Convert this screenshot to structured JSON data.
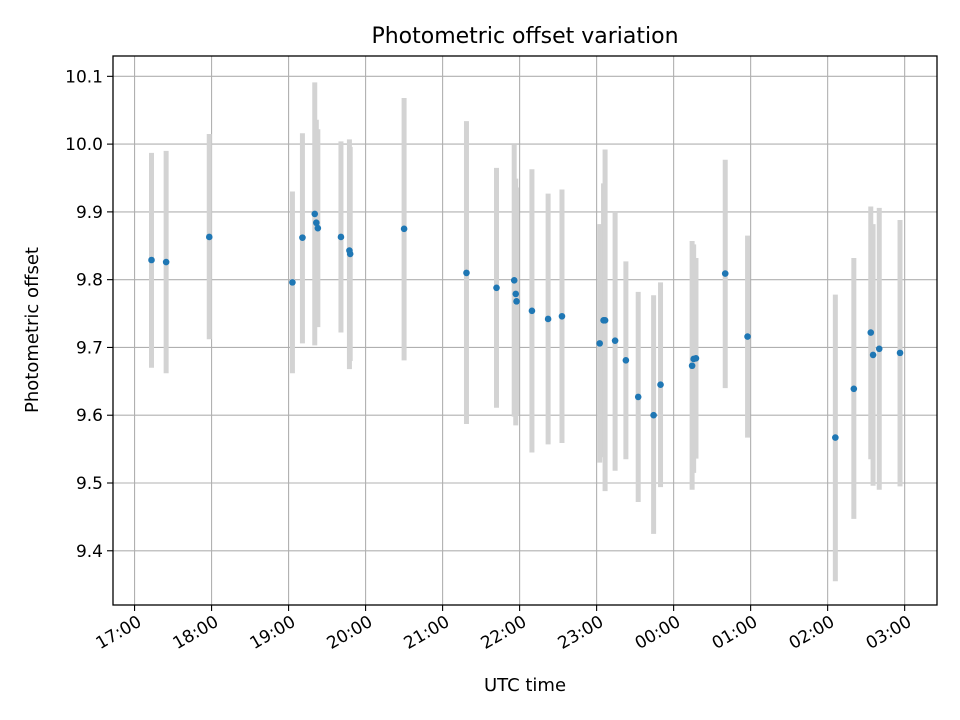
{
  "chart_data": {
    "type": "scatter",
    "title": "Photometric offset variation",
    "xlabel": "UTC time",
    "ylabel": "Photometric offset",
    "x_unit": "hours after 17:00 UTC",
    "xlim": [
      -0.28,
      10.42
    ],
    "ylim": [
      9.32,
      10.13
    ],
    "grid": true,
    "legend": "none",
    "x_ticks": [
      {
        "value": 0,
        "label": "17:00"
      },
      {
        "value": 1,
        "label": "18:00"
      },
      {
        "value": 2,
        "label": "19:00"
      },
      {
        "value": 3,
        "label": "20:00"
      },
      {
        "value": 4,
        "label": "21:00"
      },
      {
        "value": 5,
        "label": "22:00"
      },
      {
        "value": 6,
        "label": "23:00"
      },
      {
        "value": 7,
        "label": "00:00"
      },
      {
        "value": 8,
        "label": "01:00"
      },
      {
        "value": 9,
        "label": "02:00"
      },
      {
        "value": 10,
        "label": "03:00"
      }
    ],
    "y_ticks": [
      9.4,
      9.5,
      9.6,
      9.7,
      9.8,
      9.9,
      10.0,
      10.1
    ],
    "y_tick_labels": [
      "9.4",
      "9.5",
      "9.6",
      "9.7",
      "9.8",
      "9.9",
      "10.0",
      "10.1"
    ],
    "colors": {
      "points": "#1f77b4",
      "errorbars": "#d3d3d3",
      "grid": "#b0b0b0"
    },
    "points": [
      {
        "x": 0.22,
        "y": 9.829,
        "lo": 9.67,
        "hi": 9.987
      },
      {
        "x": 0.41,
        "y": 9.826,
        "lo": 9.662,
        "hi": 9.99
      },
      {
        "x": 0.97,
        "y": 9.863,
        "lo": 9.712,
        "hi": 10.015
      },
      {
        "x": 2.05,
        "y": 9.796,
        "lo": 9.662,
        "hi": 9.93
      },
      {
        "x": 2.18,
        "y": 9.862,
        "lo": 9.706,
        "hi": 10.016
      },
      {
        "x": 2.34,
        "y": 9.897,
        "lo": 9.703,
        "hi": 10.091
      },
      {
        "x": 2.36,
        "y": 9.884,
        "lo": 9.732,
        "hi": 10.036
      },
      {
        "x": 2.38,
        "y": 9.876,
        "lo": 9.73,
        "hi": 10.022
      },
      {
        "x": 2.68,
        "y": 9.863,
        "lo": 9.722,
        "hi": 10.004
      },
      {
        "x": 2.79,
        "y": 9.843,
        "lo": 9.668,
        "hi": 10.007
      },
      {
        "x": 2.8,
        "y": 9.838,
        "lo": 9.68,
        "hi": 9.996
      },
      {
        "x": 3.5,
        "y": 9.875,
        "lo": 9.681,
        "hi": 10.068
      },
      {
        "x": 4.31,
        "y": 9.81,
        "lo": 9.587,
        "hi": 10.034
      },
      {
        "x": 4.7,
        "y": 9.788,
        "lo": 9.611,
        "hi": 9.965
      },
      {
        "x": 4.93,
        "y": 9.799,
        "lo": 9.598,
        "hi": 10.0
      },
      {
        "x": 4.95,
        "y": 9.779,
        "lo": 9.585,
        "hi": 9.949
      },
      {
        "x": 4.96,
        "y": 9.768,
        "lo": 9.6,
        "hi": 9.936
      },
      {
        "x": 5.16,
        "y": 9.754,
        "lo": 9.545,
        "hi": 9.963
      },
      {
        "x": 5.37,
        "y": 9.742,
        "lo": 9.557,
        "hi": 9.927
      },
      {
        "x": 5.55,
        "y": 9.746,
        "lo": 9.559,
        "hi": 9.933
      },
      {
        "x": 6.04,
        "y": 9.706,
        "lo": 9.53,
        "hi": 9.882
      },
      {
        "x": 6.09,
        "y": 9.74,
        "lo": 9.538,
        "hi": 9.942
      },
      {
        "x": 6.11,
        "y": 9.74,
        "lo": 9.488,
        "hi": 9.992
      },
      {
        "x": 6.24,
        "y": 9.71,
        "lo": 9.518,
        "hi": 9.9
      },
      {
        "x": 6.38,
        "y": 9.681,
        "lo": 9.535,
        "hi": 9.827
      },
      {
        "x": 6.54,
        "y": 9.627,
        "lo": 9.472,
        "hi": 9.782
      },
      {
        "x": 6.74,
        "y": 9.6,
        "lo": 9.425,
        "hi": 9.777
      },
      {
        "x": 6.83,
        "y": 9.645,
        "lo": 9.494,
        "hi": 9.796
      },
      {
        "x": 7.24,
        "y": 9.673,
        "lo": 9.49,
        "hi": 9.857
      },
      {
        "x": 7.26,
        "y": 9.683,
        "lo": 9.515,
        "hi": 9.852
      },
      {
        "x": 7.29,
        "y": 9.684,
        "lo": 9.536,
        "hi": 9.832
      },
      {
        "x": 7.67,
        "y": 9.809,
        "lo": 9.64,
        "hi": 9.977
      },
      {
        "x": 7.96,
        "y": 9.716,
        "lo": 9.567,
        "hi": 9.865
      },
      {
        "x": 9.1,
        "y": 9.567,
        "lo": 9.355,
        "hi": 9.778
      },
      {
        "x": 9.34,
        "y": 9.639,
        "lo": 9.447,
        "hi": 9.832
      },
      {
        "x": 9.56,
        "y": 9.722,
        "lo": 9.535,
        "hi": 9.908
      },
      {
        "x": 9.59,
        "y": 9.689,
        "lo": 9.496,
        "hi": 9.882
      },
      {
        "x": 9.67,
        "y": 9.698,
        "lo": 9.49,
        "hi": 9.906
      },
      {
        "x": 9.94,
        "y": 9.692,
        "lo": 9.495,
        "hi": 9.888
      }
    ]
  }
}
